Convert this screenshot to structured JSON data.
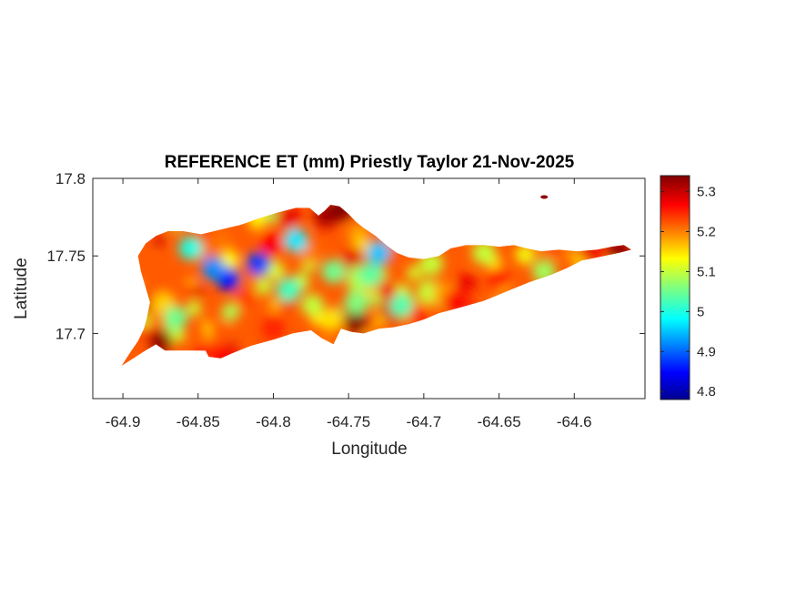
{
  "chart_data": {
    "type": "heatmap",
    "title": "REFERENCE ET (mm) Priestly Taylor 21-Nov-2025",
    "xlabel": "Longitude",
    "ylabel": "Latitude",
    "xlim": [
      -64.92,
      -64.553
    ],
    "ylim": [
      17.658,
      17.8
    ],
    "x_ticks": [
      -64.9,
      -64.85,
      -64.8,
      -64.75,
      -64.7,
      -64.65,
      -64.6
    ],
    "x_tick_labels": [
      "-64.9",
      "-64.85",
      "-64.8",
      "-64.75",
      "-64.7",
      "-64.65",
      "-64.6"
    ],
    "y_ticks": [
      17.7,
      17.75,
      17.8
    ],
    "y_tick_labels": [
      "17.7",
      "17.75",
      "17.8"
    ],
    "grid": false,
    "colorbar": {
      "position": "right",
      "colormap": "jet",
      "range": [
        4.78,
        5.34
      ],
      "ticks": [
        4.8,
        4.9,
        5.0,
        5.1,
        5.2,
        5.3
      ],
      "tick_labels": [
        "4.8",
        "4.9",
        "5",
        "5.1",
        "5.2",
        "5.3"
      ]
    },
    "value_field": {
      "description_units": "mm",
      "min": 4.78,
      "max": 5.34,
      "low_zones": [
        {
          "lon": -64.83,
          "lat": 17.735,
          "value": 4.85
        },
        {
          "lon": -64.81,
          "lat": 17.745,
          "value": 4.88
        },
        {
          "lon": -64.84,
          "lat": 17.742,
          "value": 4.92
        },
        {
          "lon": -64.855,
          "lat": 17.755,
          "value": 5.0
        },
        {
          "lon": -64.785,
          "lat": 17.76,
          "value": 4.97
        },
        {
          "lon": -64.73,
          "lat": 17.752,
          "value": 4.95
        },
        {
          "lon": -64.79,
          "lat": 17.728,
          "value": 5.02
        },
        {
          "lon": -64.865,
          "lat": 17.71,
          "value": 5.05
        },
        {
          "lon": -64.715,
          "lat": 17.718,
          "value": 5.03
        },
        {
          "lon": -64.745,
          "lat": 17.72,
          "value": 5.06
        },
        {
          "lon": -64.76,
          "lat": 17.74,
          "value": 5.05
        },
        {
          "lon": -64.735,
          "lat": 17.738,
          "value": 5.04
        },
        {
          "lon": -64.695,
          "lat": 17.745,
          "value": 5.1
        },
        {
          "lon": -64.62,
          "lat": 17.74,
          "value": 5.08
        },
        {
          "lon": -64.66,
          "lat": 17.752,
          "value": 5.1
        }
      ],
      "high_zones": [
        {
          "lon": -64.875,
          "lat": 17.695,
          "value": 5.33
        },
        {
          "lon": -64.89,
          "lat": 17.718,
          "value": 5.3
        },
        {
          "lon": -64.745,
          "lat": 17.708,
          "value": 5.34
        },
        {
          "lon": -64.72,
          "lat": 17.715,
          "value": 5.3
        },
        {
          "lon": -64.765,
          "lat": 17.776,
          "value": 5.32
        },
        {
          "lon": -64.755,
          "lat": 17.78,
          "value": 5.34
        },
        {
          "lon": -64.79,
          "lat": 17.775,
          "value": 5.28
        },
        {
          "lon": -64.68,
          "lat": 17.72,
          "value": 5.27
        },
        {
          "lon": -64.57,
          "lat": 17.753,
          "value": 5.33
        },
        {
          "lon": -64.59,
          "lat": 17.755,
          "value": 5.28
        },
        {
          "lon": -64.8,
          "lat": 17.703,
          "value": 5.25
        },
        {
          "lon": -64.835,
          "lat": 17.7,
          "value": 5.22
        },
        {
          "lon": -64.65,
          "lat": 17.735,
          "value": 5.25
        },
        {
          "lon": -64.88,
          "lat": 17.74,
          "value": 5.22
        }
      ],
      "isolated_cell": {
        "lon": -64.62,
        "lat": 17.788,
        "value": 5.33
      }
    },
    "island_outline_lonlat": [
      [
        -64.901,
        17.679
      ],
      [
        -64.893,
        17.684
      ],
      [
        -64.885,
        17.689
      ],
      [
        -64.878,
        17.693
      ],
      [
        -64.872,
        17.689
      ],
      [
        -64.845,
        17.689
      ],
      [
        -64.843,
        17.685
      ],
      [
        -64.835,
        17.684
      ],
      [
        -64.828,
        17.687
      ],
      [
        -64.815,
        17.692
      ],
      [
        -64.8,
        17.696
      ],
      [
        -64.787,
        17.7
      ],
      [
        -64.775,
        17.702
      ],
      [
        -64.768,
        17.697
      ],
      [
        -64.76,
        17.693
      ],
      [
        -64.755,
        17.703
      ],
      [
        -64.748,
        17.701
      ],
      [
        -64.74,
        17.7
      ],
      [
        -64.73,
        17.703
      ],
      [
        -64.72,
        17.704
      ],
      [
        -64.71,
        17.706
      ],
      [
        -64.7,
        17.709
      ],
      [
        -64.69,
        17.713
      ],
      [
        -64.675,
        17.717
      ],
      [
        -64.66,
        17.721
      ],
      [
        -64.645,
        17.727
      ],
      [
        -64.63,
        17.733
      ],
      [
        -64.615,
        17.738
      ],
      [
        -64.605,
        17.742
      ],
      [
        -64.595,
        17.747
      ],
      [
        -64.58,
        17.75
      ],
      [
        -64.57,
        17.752
      ],
      [
        -64.562,
        17.754
      ],
      [
        -64.567,
        17.757
      ],
      [
        -64.575,
        17.756
      ],
      [
        -64.585,
        17.754
      ],
      [
        -64.598,
        17.753
      ],
      [
        -64.61,
        17.754
      ],
      [
        -64.622,
        17.753
      ],
      [
        -64.632,
        17.755
      ],
      [
        -64.64,
        17.757
      ],
      [
        -64.65,
        17.756
      ],
      [
        -64.66,
        17.757
      ],
      [
        -64.672,
        17.757
      ],
      [
        -64.682,
        17.755
      ],
      [
        -64.69,
        17.75
      ],
      [
        -64.7,
        17.748
      ],
      [
        -64.71,
        17.749
      ],
      [
        -64.718,
        17.752
      ],
      [
        -64.725,
        17.757
      ],
      [
        -64.732,
        17.763
      ],
      [
        -64.74,
        17.768
      ],
      [
        -64.745,
        17.772
      ],
      [
        -64.75,
        17.777
      ],
      [
        -64.756,
        17.782
      ],
      [
        -64.762,
        17.783
      ],
      [
        -64.766,
        17.779
      ],
      [
        -64.77,
        17.776
      ],
      [
        -64.776,
        17.781
      ],
      [
        -64.785,
        17.781
      ],
      [
        -64.797,
        17.778
      ],
      [
        -64.81,
        17.774
      ],
      [
        -64.822,
        17.77
      ],
      [
        -64.835,
        17.767
      ],
      [
        -64.848,
        17.764
      ],
      [
        -64.86,
        17.766
      ],
      [
        -64.87,
        17.766
      ],
      [
        -64.878,
        17.763
      ],
      [
        -64.885,
        17.758
      ],
      [
        -64.89,
        17.75
      ],
      [
        -64.888,
        17.74
      ],
      [
        -64.885,
        17.73
      ],
      [
        -64.882,
        17.72
      ],
      [
        -64.884,
        17.71
      ],
      [
        -64.886,
        17.703
      ],
      [
        -64.89,
        17.695
      ],
      [
        -64.895,
        17.688
      ],
      [
        -64.901,
        17.679
      ]
    ]
  }
}
